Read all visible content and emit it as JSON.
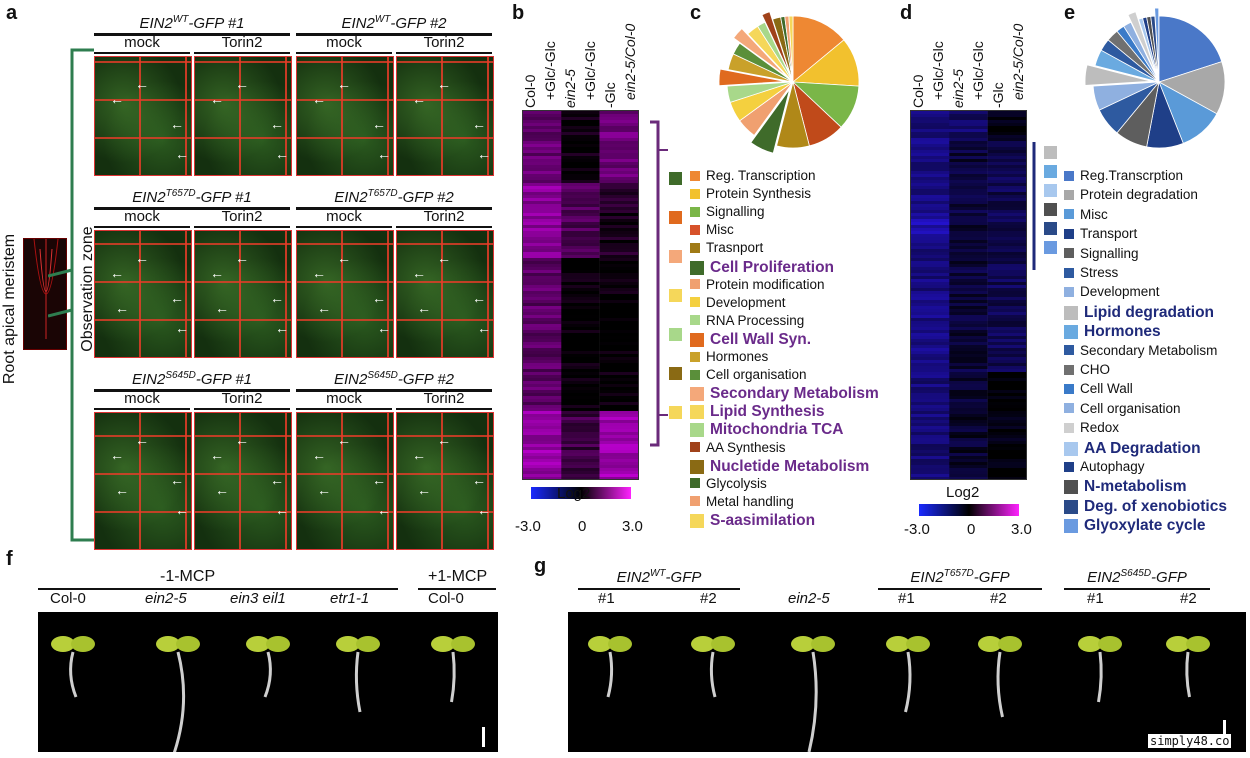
{
  "panels": {
    "a": "a",
    "b": "b",
    "c": "c",
    "d": "d",
    "e": "e",
    "f": "f",
    "g": "g"
  },
  "panel_a": {
    "genotypes": [
      {
        "name": "EIN2",
        "sup": "WT",
        "suffix": "-GFP #1"
      },
      {
        "name": "EIN2",
        "sup": "WT",
        "suffix": "-GFP #2"
      },
      {
        "name": "EIN2",
        "sup": "T657D",
        "suffix": "-GFP #1"
      },
      {
        "name": "EIN2",
        "sup": "T657D",
        "suffix": "-GFP #2"
      },
      {
        "name": "EIN2",
        "sup": "S645D",
        "suffix": "-GFP #1"
      },
      {
        "name": "EIN2",
        "sup": "S645D",
        "suffix": "-GFP #2"
      }
    ],
    "treatments": [
      "mock",
      "Torin2"
    ],
    "side_label": "Root apical meristem",
    "zone_label": "Observation zone"
  },
  "panel_b": {
    "columns": [
      "Col-0",
      "+Glc/-Glc",
      "ein2-5",
      "+Glc/-Glc",
      "-Glc",
      "ein2-5/Col-0"
    ],
    "scale_title": "Log2",
    "scale_ticks": [
      "-3.0",
      "0",
      "3.0"
    ]
  },
  "panel_c": {
    "legend": [
      {
        "label": "Reg. Transcription",
        "color": "#ee8833",
        "big": false
      },
      {
        "label": "Protein Synthesis",
        "color": "#f2c12e",
        "big": false
      },
      {
        "label": "Signalling",
        "color": "#7ab648",
        "big": false
      },
      {
        "label": "Misc",
        "color": "#d7522a",
        "big": false
      },
      {
        "label": "Trasnport",
        "color": "#a07a16",
        "big": false
      },
      {
        "label": "Cell Proliferation",
        "color": "#3f6b2a",
        "big": true
      },
      {
        "label": "Protein modification",
        "color": "#f0a070",
        "big": false
      },
      {
        "label": "Development",
        "color": "#f4d03f",
        "big": false
      },
      {
        "label": "RNA Processing",
        "color": "#a8d88a",
        "big": false
      },
      {
        "label": "Cell Wall Syn.",
        "color": "#e06a1e",
        "big": true
      },
      {
        "label": "Hormones",
        "color": "#c9a12a",
        "big": false
      },
      {
        "label": "Cell organisation",
        "color": "#5a8f3a",
        "big": false
      },
      {
        "label": "Secondary Metabolism",
        "color": "#f4a87a",
        "big": true
      },
      {
        "label": "Lipid Synthesis",
        "color": "#f5d75a",
        "big": true
      },
      {
        "label": "Mitochondria TCA",
        "color": "#a8d88a",
        "big": true
      },
      {
        "label": "AA Synthesis",
        "color": "#a0421a",
        "big": false
      },
      {
        "label": "Nucletide Metabolism",
        "color": "#8a6a14",
        "big": true
      },
      {
        "label": "Glycolysis",
        "color": "#3f6b2a",
        "big": false
      },
      {
        "label": "Metal handling",
        "color": "#f0a070",
        "big": false
      },
      {
        "label": "S-aasimilation",
        "color": "#f5d75a",
        "big": true
      }
    ],
    "pie": [
      {
        "label": "Reg. Transcription",
        "value": 14,
        "color": "#ee8833"
      },
      {
        "label": "Protein Synthesis",
        "value": 12,
        "color": "#f2c12e"
      },
      {
        "label": "Signalling",
        "value": 11,
        "color": "#7ab648"
      },
      {
        "label": "Misc",
        "value": 9,
        "color": "#c04a1a"
      },
      {
        "label": "Trasnport",
        "value": 8,
        "color": "#b08818"
      },
      {
        "label": "Cell Proliferation",
        "value": 6,
        "color": "#3f6b2a"
      },
      {
        "label": "Protein modification",
        "value": 5,
        "color": "#f0a070"
      },
      {
        "label": "Development",
        "value": 5,
        "color": "#f4d03f"
      },
      {
        "label": "RNA Processing",
        "value": 4,
        "color": "#a8d88a"
      },
      {
        "label": "Cell Wall Syn.",
        "value": 4,
        "color": "#e06a1e"
      },
      {
        "label": "Hormones",
        "value": 4,
        "color": "#c9a12a"
      },
      {
        "label": "Cell organisation",
        "value": 3,
        "color": "#5a8f3a"
      },
      {
        "label": "Secondary Metabolism",
        "value": 3,
        "color": "#f4a87a"
      },
      {
        "label": "Lipid Synthesis",
        "value": 3,
        "color": "#f5d75a"
      },
      {
        "label": "Mitochondria TCA",
        "value": 2,
        "color": "#a8d88a"
      },
      {
        "label": "AA Synthesis",
        "value": 2,
        "color": "#a0421a"
      },
      {
        "label": "Nucletide Metabolism",
        "value": 2,
        "color": "#8a6a14"
      },
      {
        "label": "Glycolysis",
        "value": 1,
        "color": "#3f6b2a"
      },
      {
        "label": "Metal handling",
        "value": 1,
        "color": "#f0a070"
      },
      {
        "label": "S-aasimilation",
        "value": 1,
        "color": "#f5d75a"
      }
    ]
  },
  "panel_d": {
    "columns": [
      "Col-0",
      "+Glc/-Glc",
      "ein2-5",
      "+Glc/-Glc",
      "-Glc",
      "ein2-5/Col-0"
    ],
    "scale_title": "Log2",
    "scale_ticks": [
      "-3.0",
      "0",
      "3.0"
    ]
  },
  "panel_e": {
    "legend": [
      {
        "label": "Reg.Transcrption",
        "color": "#4a78c8",
        "big": false
      },
      {
        "label": "Protein degradation",
        "color": "#a8a8a8",
        "big": false
      },
      {
        "label": "Misc",
        "color": "#5a9ad8",
        "big": false
      },
      {
        "label": "Transport",
        "color": "#1f3f88",
        "big": false
      },
      {
        "label": "Signalling",
        "color": "#5e5e5e",
        "big": false
      },
      {
        "label": "Stress",
        "color": "#2e5aa0",
        "big": false
      },
      {
        "label": "Development",
        "color": "#8fb0e0",
        "big": false
      },
      {
        "label": "Lipid degradation",
        "color": "#bdbdbd",
        "big": true
      },
      {
        "label": "Hormones",
        "color": "#6aaae0",
        "big": true
      },
      {
        "label": "Secondary Metabolism",
        "color": "#2e5aa0",
        "big": false
      },
      {
        "label": "CHO",
        "color": "#707070",
        "big": false
      },
      {
        "label": "Cell Wall",
        "color": "#3a7ac8",
        "big": false
      },
      {
        "label": "Cell organisation",
        "color": "#8fb0e0",
        "big": false
      },
      {
        "label": "Redox",
        "color": "#cfcfcf",
        "big": false
      },
      {
        "label": "AA Degradation",
        "color": "#a8c8ee",
        "big": true
      },
      {
        "label": "Autophagy",
        "color": "#1f3f88",
        "big": false
      },
      {
        "label": "N-metabolism",
        "color": "#505050",
        "big": true
      },
      {
        "label": "Deg. of xenobiotics",
        "color": "#2a4a88",
        "big": true
      },
      {
        "label": "Glyoxylate cycle",
        "color": "#6a9ae0",
        "big": true
      }
    ],
    "pie": [
      {
        "label": "Reg.Transcrption",
        "value": 20,
        "color": "#4a78c8"
      },
      {
        "label": "Protein degradation",
        "value": 13,
        "color": "#a8a8a8"
      },
      {
        "label": "Misc",
        "value": 11,
        "color": "#5a9ad8"
      },
      {
        "label": "Transport",
        "value": 9,
        "color": "#1f3f88"
      },
      {
        "label": "Signalling",
        "value": 8,
        "color": "#5e5e5e"
      },
      {
        "label": "Stress",
        "value": 7,
        "color": "#2e5aa0"
      },
      {
        "label": "Development",
        "value": 6,
        "color": "#8fb0e0"
      },
      {
        "label": "Lipid degradation",
        "value": 5,
        "color": "#bdbdbd"
      },
      {
        "label": "Hormones",
        "value": 4,
        "color": "#6aaae0"
      },
      {
        "label": "Secondary Metabolism",
        "value": 3,
        "color": "#2e5aa0"
      },
      {
        "label": "CHO",
        "value": 3,
        "color": "#707070"
      },
      {
        "label": "Cell Wall",
        "value": 2,
        "color": "#3a7ac8"
      },
      {
        "label": "Cell organisation",
        "value": 2,
        "color": "#8fb0e0"
      },
      {
        "label": "Redox",
        "value": 2,
        "color": "#cfcfcf"
      },
      {
        "label": "AA Degradation",
        "value": 1,
        "color": "#a8c8ee"
      },
      {
        "label": "Autophagy",
        "value": 1,
        "color": "#1f3f88"
      },
      {
        "label": "N-metabolism",
        "value": 1,
        "color": "#505050"
      },
      {
        "label": "Deg. of xenobiotics",
        "value": 1,
        "color": "#2a4a88"
      },
      {
        "label": "Glyoxylate cycle",
        "value": 1,
        "color": "#6a9ae0"
      }
    ]
  },
  "panel_f": {
    "group_minus": "-1-MCP",
    "group_plus": "+1-MCP",
    "lanes": [
      "Col-0",
      "ein2-5",
      "ein3 eil1",
      "etr1-1",
      "Col-0"
    ]
  },
  "panel_g": {
    "groups": [
      {
        "name": "EIN2",
        "sup": "WT",
        "suffix": "-GFP"
      },
      {
        "name": "EIN2",
        "sup": "T657D",
        "suffix": "-GFP"
      },
      {
        "name": "EIN2",
        "sup": "S645D",
        "suffix": "-GFP"
      }
    ],
    "lanes": [
      "#1",
      "#2",
      "ein2-5",
      "#1",
      "#2",
      "#1",
      "#2"
    ]
  },
  "watermark": "simply48.co"
}
